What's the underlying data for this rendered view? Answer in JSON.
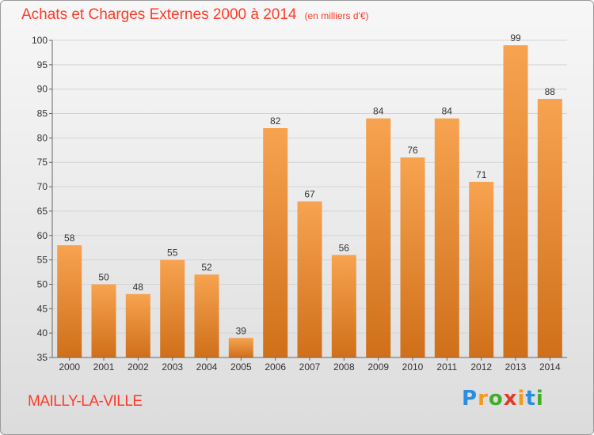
{
  "header": {
    "title": "Achats et Charges Externes 2000 à 2014",
    "unit": "(en milliers d'€)"
  },
  "footer": {
    "commune": "MAILLY-LA-VILLE",
    "logo_letters": [
      "P",
      "r",
      "o",
      "x",
      "i",
      "t",
      "i"
    ],
    "logo_colors": [
      "#2a8ee0",
      "#f39a1e",
      "#3fae2a",
      "#e2382a",
      "#f39a1e",
      "#2a8ee0",
      "#3fae2a"
    ]
  },
  "colors": {
    "title": "#ff3a28",
    "bar_light": "#f7a350",
    "bar_dark": "#d06f1a",
    "grid": "#d4d4d4"
  },
  "chart_data": {
    "type": "bar",
    "title": "Achats et Charges Externes 2000 à 2014",
    "subtitle": "(en milliers d'€)",
    "categories": [
      "2000",
      "2001",
      "2002",
      "2003",
      "2004",
      "2005",
      "2006",
      "2007",
      "2008",
      "2009",
      "2010",
      "2011",
      "2012",
      "2013",
      "2014"
    ],
    "values": [
      58,
      50,
      48,
      55,
      52,
      39,
      82,
      67,
      56,
      84,
      76,
      84,
      71,
      99,
      88
    ],
    "ylim": [
      35,
      100
    ],
    "yticks": [
      35,
      40,
      45,
      50,
      55,
      60,
      65,
      70,
      75,
      80,
      85,
      90,
      95,
      100
    ],
    "grid": true,
    "data_labels": true
  }
}
